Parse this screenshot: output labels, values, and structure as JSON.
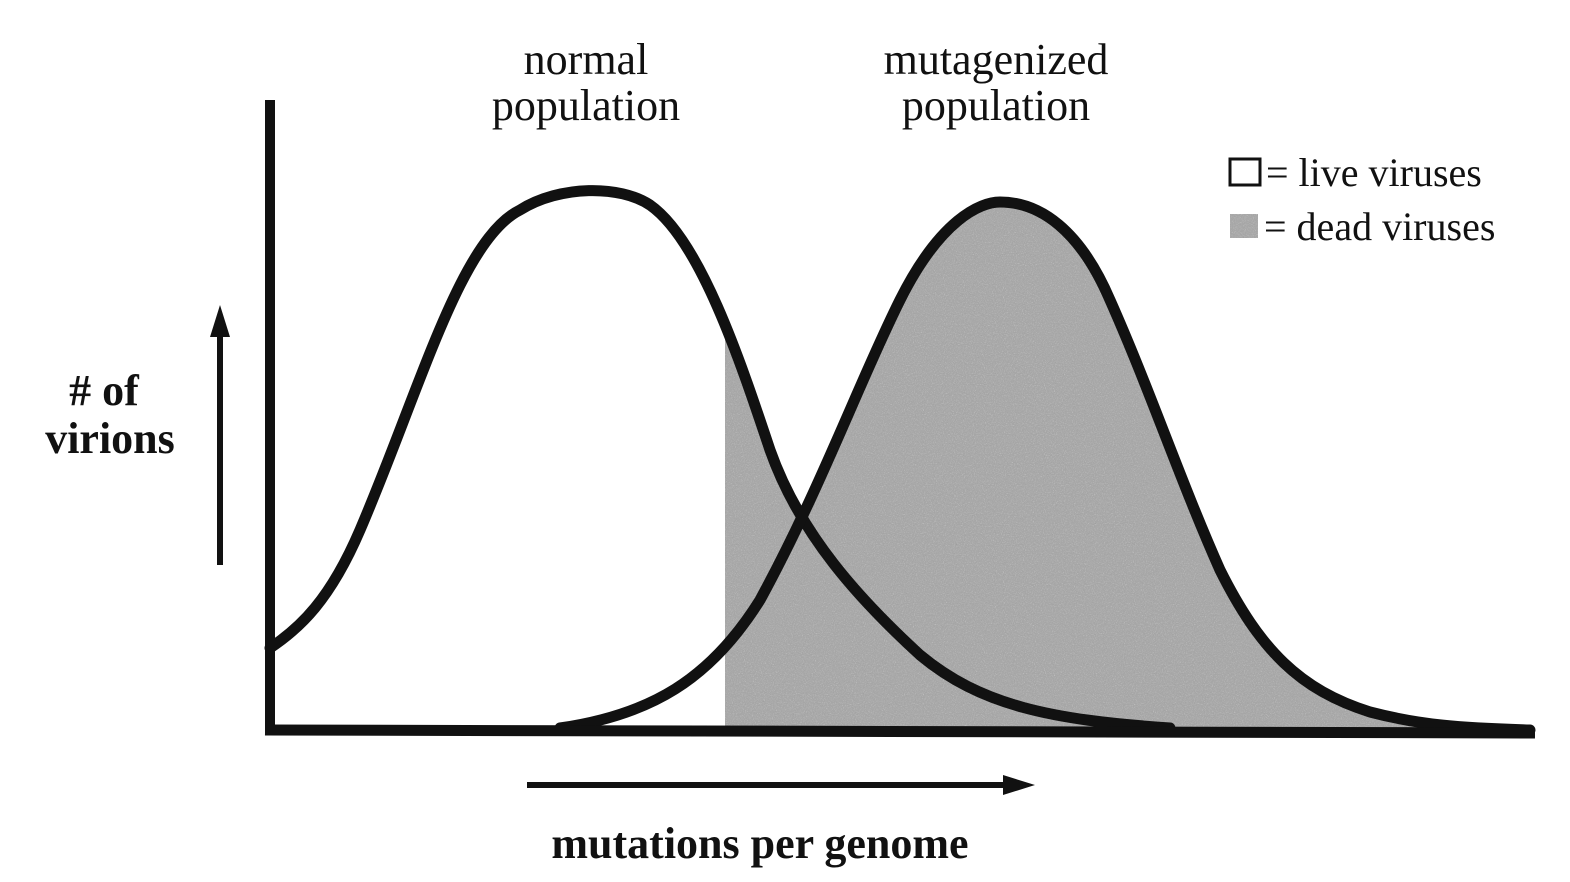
{
  "labels": {
    "normal_line1": "normal",
    "normal_line2": "population",
    "mutagenized_line1": "mutagenized",
    "mutagenized_line2": "population",
    "y_line1": "# of",
    "y_line2": "virions",
    "x_axis": "mutations per genome"
  },
  "legend": {
    "live": "= live viruses",
    "dead": "= dead viruses"
  },
  "colors": {
    "curve": "#111111",
    "dead_fill": "#a6a6a6",
    "live_fill": "#ffffff"
  }
}
